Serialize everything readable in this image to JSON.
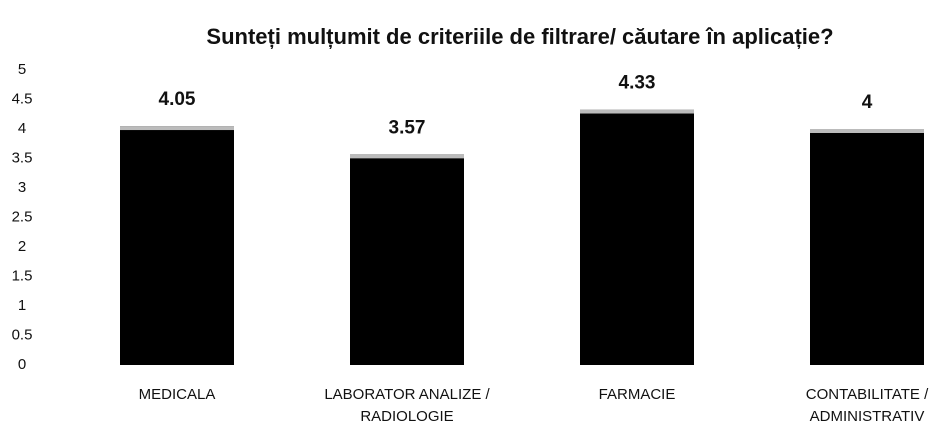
{
  "chart_data": {
    "type": "bar",
    "title": "Sunteți mulțumit de criteriile de filtrare/ căutare în aplicație?",
    "categories": [
      "MEDICALA",
      "LABORATOR ANALIZE / RADIOLOGIE",
      "FARMACIE",
      "CONTABILITATE / ADMINISTRATIV"
    ],
    "values": [
      4.05,
      3.57,
      4.33,
      4
    ],
    "color": "#000000",
    "ylim": [
      0,
      5
    ],
    "yticks": [
      0,
      0.5,
      1,
      1.5,
      2,
      2.5,
      3,
      3.5,
      4,
      4.5,
      5
    ],
    "grid": false
  }
}
